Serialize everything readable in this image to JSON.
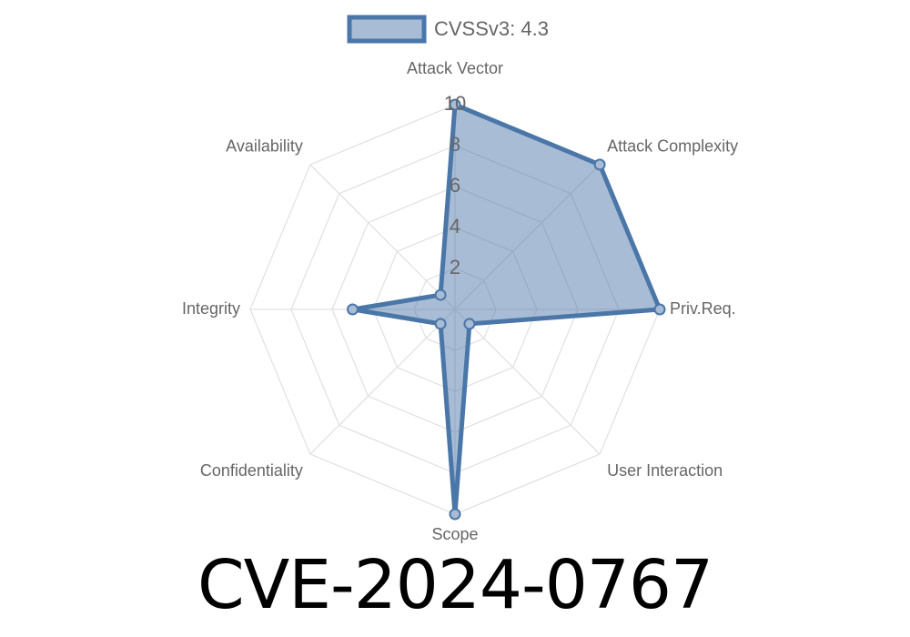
{
  "chart_data": {
    "type": "radar",
    "legend": {
      "label": "CVSSv3: 4.3",
      "position": "top"
    },
    "axes": [
      "Attack Vector",
      "Attack Complexity",
      "Priv.Req.",
      "User Interaction",
      "Scope",
      "Confidentiality",
      "Integrity",
      "Availability"
    ],
    "series": [
      {
        "name": "CVSSv3: 4.3",
        "values": [
          10,
          10,
          10,
          1,
          10,
          1,
          5,
          1
        ]
      }
    ],
    "r_range": [
      0,
      10
    ],
    "r_ticks": [
      "2",
      "4",
      "6",
      "8",
      "10"
    ],
    "grid": true,
    "colors": {
      "stroke": "#4a76a8",
      "fill": "rgba(74,118,168,0.48)",
      "grid": "#e0e0e0",
      "text": "#666666"
    }
  },
  "page": {
    "title": "CVE-2024-0767"
  }
}
